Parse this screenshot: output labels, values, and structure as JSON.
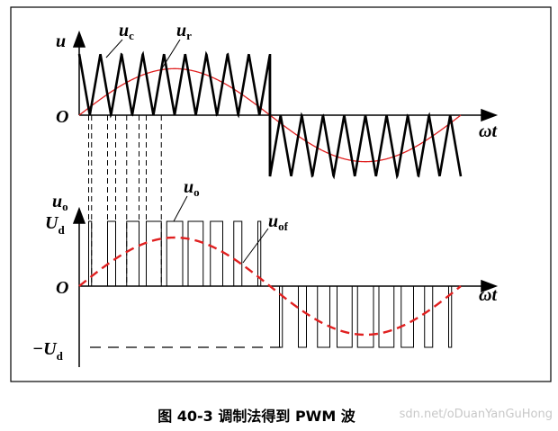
{
  "top_panel": {
    "y_label": "u",
    "carrier_label": {
      "text": "u",
      "sub": "c"
    },
    "reference_label": {
      "text": "u",
      "sub": "r"
    },
    "origin": "O",
    "x_label": "ωt"
  },
  "bottom_panel": {
    "y_label": {
      "text": "u",
      "sub": "o"
    },
    "high_label": {
      "text": "U",
      "sub": "d"
    },
    "output_label": {
      "text": "u",
      "sub": "o"
    },
    "fundamental_label": {
      "text": "u",
      "sub": "of"
    },
    "origin": "O",
    "x_label": "ωt",
    "low_label": {
      "text": "−U",
      "sub": "d"
    }
  },
  "caption": "图 40-3 调制法得到 PWM 波",
  "watermark": "sdn.net/oDuanYanGuHong"
}
